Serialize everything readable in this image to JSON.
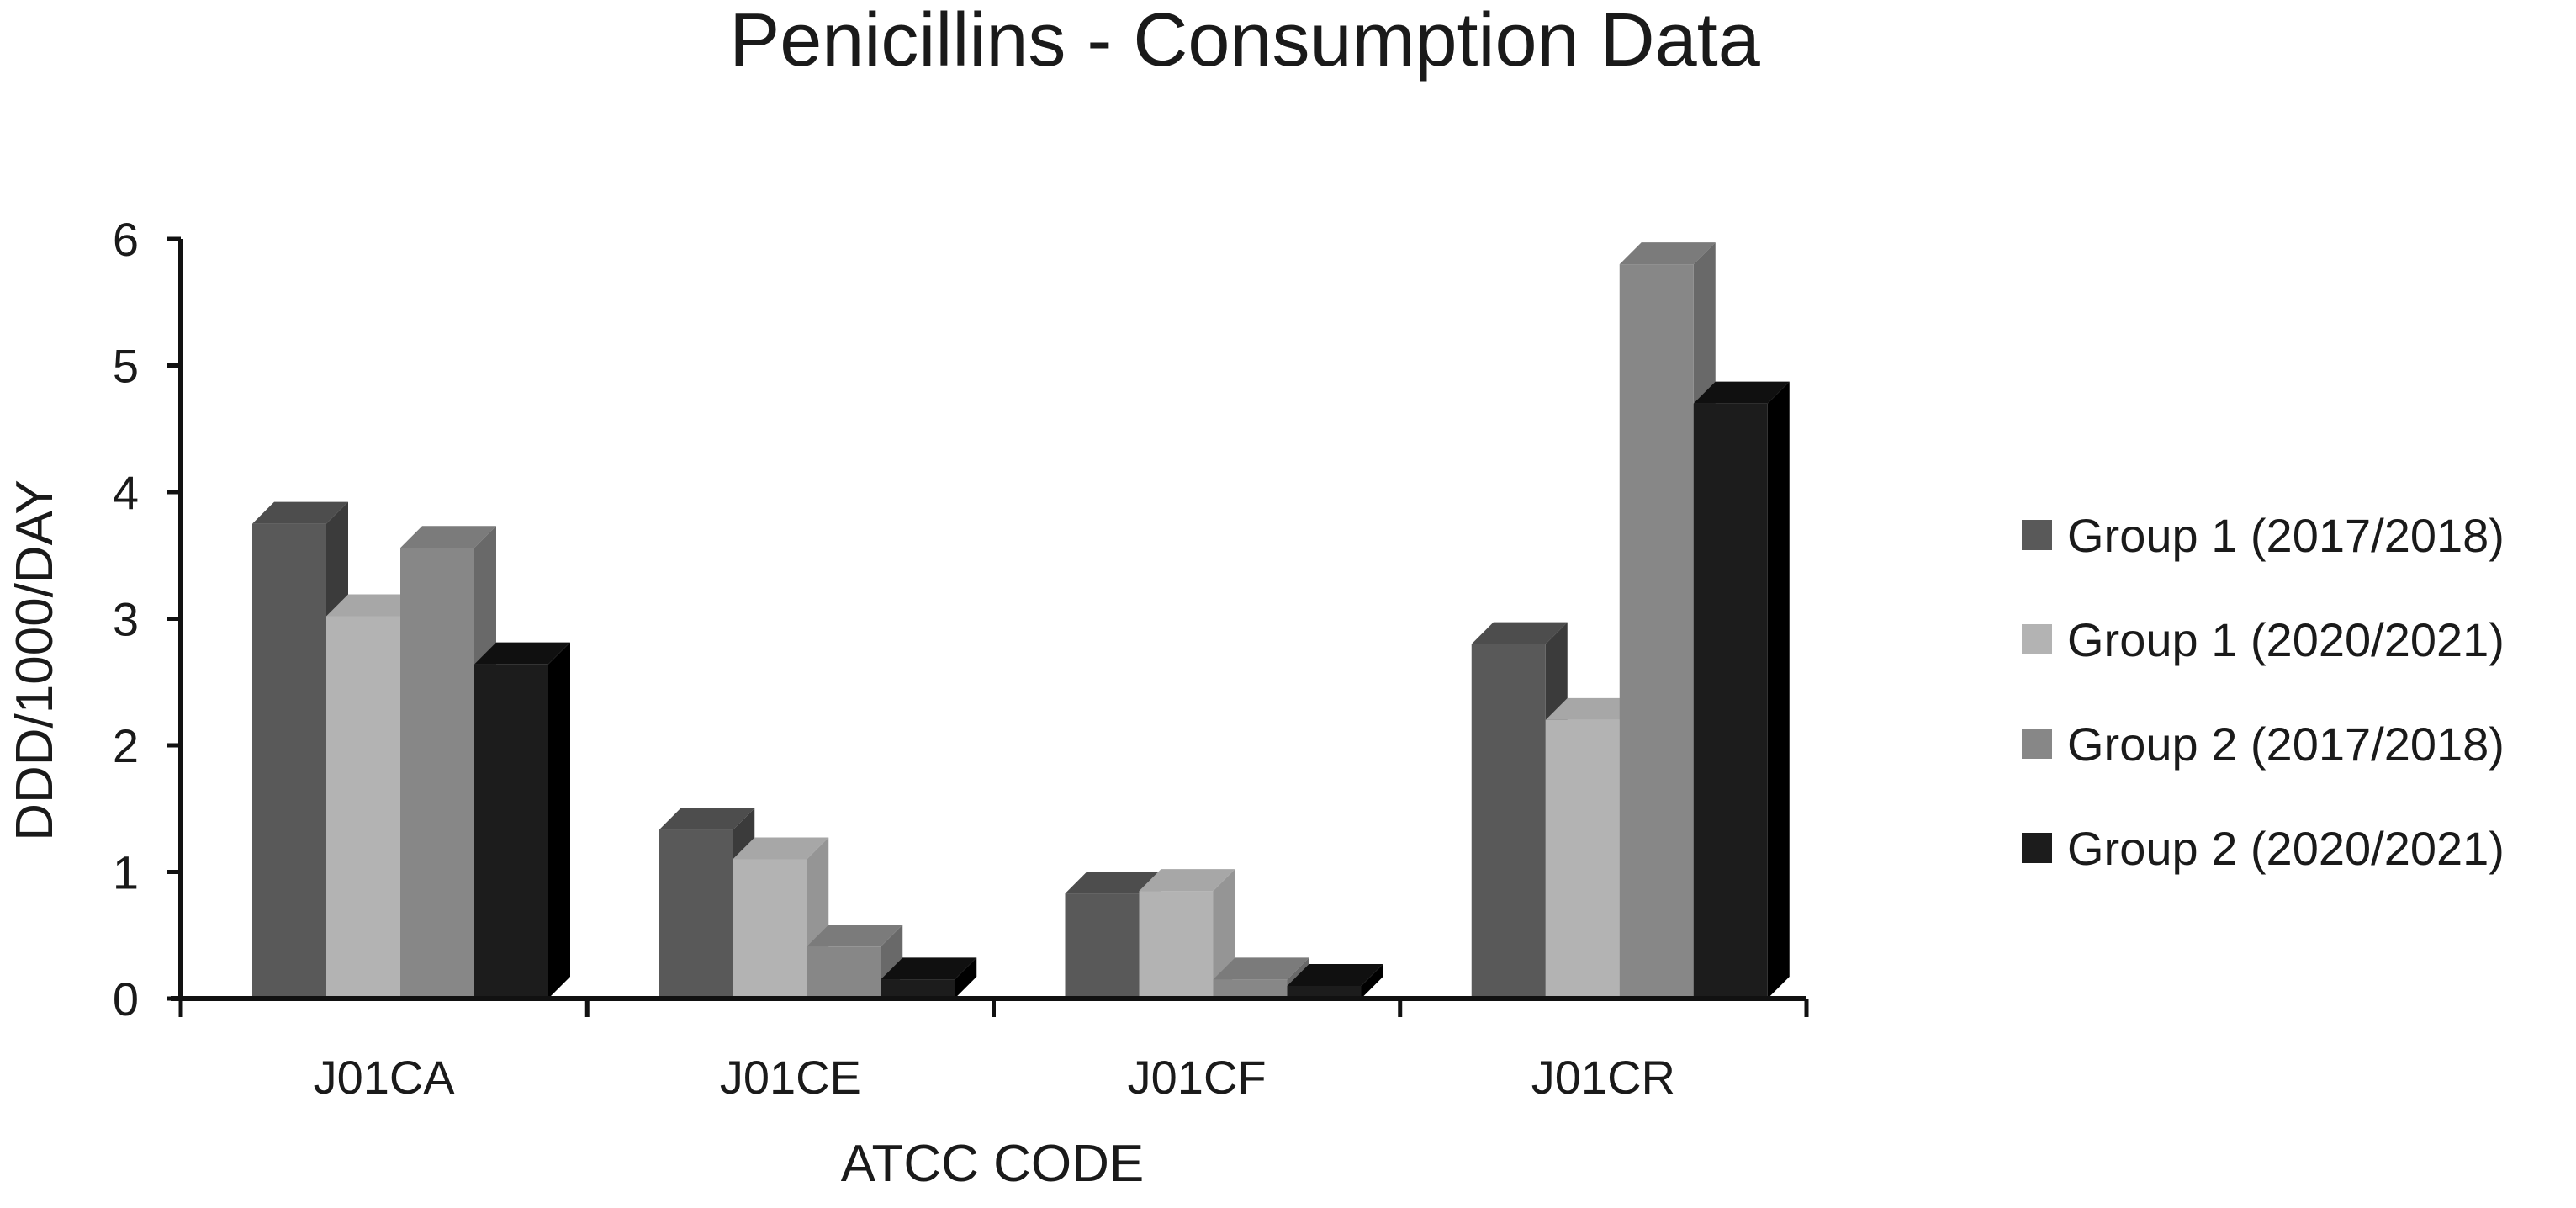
{
  "chart_data": {
    "type": "bar",
    "title": "Penicillins - Consumption Data",
    "xlabel": "ATCC CODE",
    "ylabel": "DDD/1000/DAY",
    "ylim": [
      0,
      6
    ],
    "yticks": [
      "0",
      "1",
      "2",
      "3",
      "4",
      "5",
      "6"
    ],
    "categories": [
      "J01CA",
      "J01CE",
      "J01CF",
      "J01CR"
    ],
    "legend_position": "right",
    "grid": false,
    "style": "3d-clustered-column",
    "series": [
      {
        "name": "Group 1 (2017/2018)",
        "color": "#595959",
        "values": [
          3.75,
          1.33,
          0.83,
          2.8
        ]
      },
      {
        "name": "Group 1 (2020/2021)",
        "color": "#b3b3b3",
        "values": [
          3.02,
          1.1,
          0.85,
          2.2
        ]
      },
      {
        "name": "Group 2 (2017/2018)",
        "color": "#878787",
        "values": [
          3.56,
          0.41,
          0.15,
          5.8
        ]
      },
      {
        "name": "Group 2 (2020/2021)",
        "color": "#1c1c1c",
        "values": [
          2.64,
          0.15,
          0.1,
          4.7
        ]
      }
    ]
  }
}
